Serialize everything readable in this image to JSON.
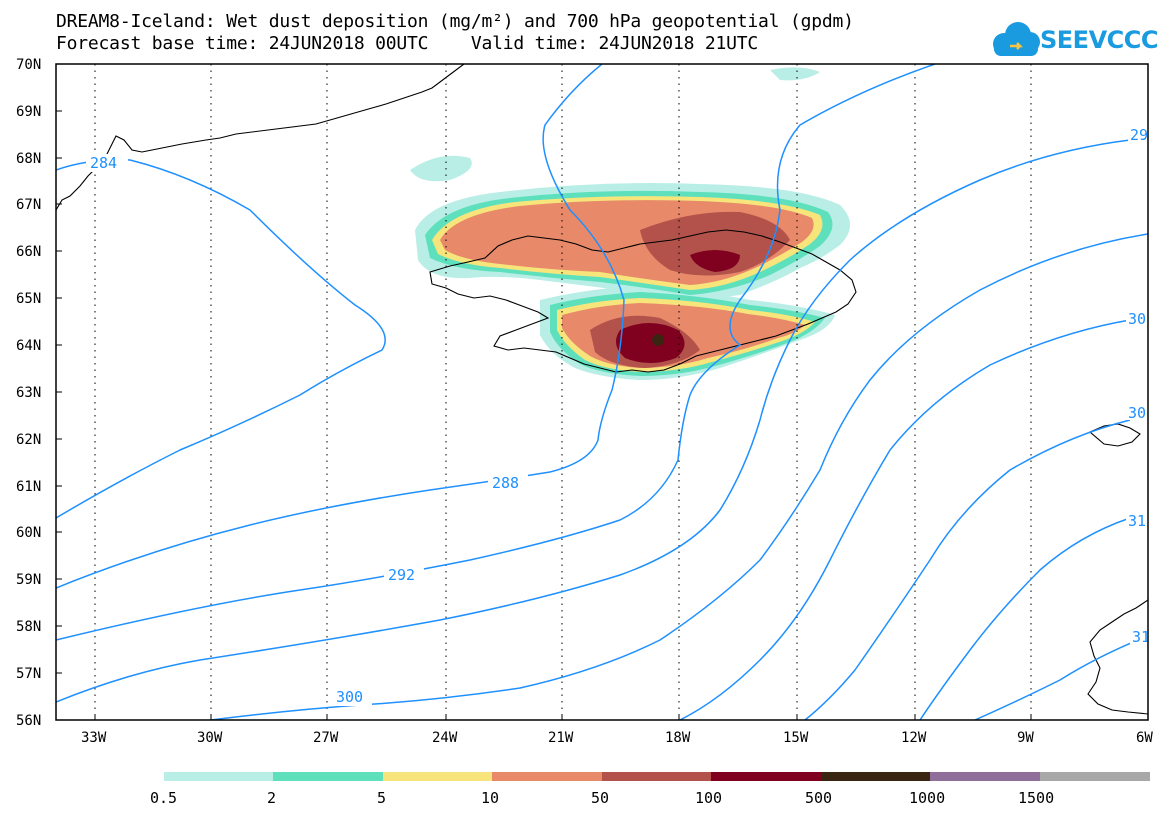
{
  "title_line1": "DREAM8-Iceland: Wet dust deposition (mg/m²) and 700 hPa geopotential (gpdm)",
  "title_line2": "Forecast base time: 24JUN2018 00UTC    Valid time: 24JUN2018 21UTC",
  "logo_text": "SEEVCCC",
  "map": {
    "lat_labels": [
      "70N",
      "69N",
      "68N",
      "67N",
      "66N",
      "65N",
      "64N",
      "63N",
      "62N",
      "61N",
      "60N",
      "59N",
      "58N",
      "57N",
      "56N"
    ],
    "lon_labels": [
      "33W",
      "30W",
      "27W",
      "24W",
      "21W",
      "18W",
      "15W",
      "12W",
      "9W",
      "6W"
    ],
    "lat_range": [
      56,
      70
    ],
    "lon_range": [
      -34.5,
      -6
    ],
    "grid": "dotted",
    "contour_color": "#1e90ff",
    "contour_labels": [
      "284",
      "288",
      "292",
      "300",
      "29",
      "30",
      "30",
      "31",
      "31"
    ]
  },
  "colorbar": {
    "ticks": [
      "0.5",
      "2",
      "5",
      "10",
      "50",
      "100",
      "500",
      "1000",
      "1500"
    ],
    "colors": [
      "#b9eee6",
      "#5ee0bd",
      "#f7e57c",
      "#e8896a",
      "#b3524a",
      "#800020",
      "#3a2412",
      "#8f6e9c",
      "#a8a8a8"
    ]
  }
}
